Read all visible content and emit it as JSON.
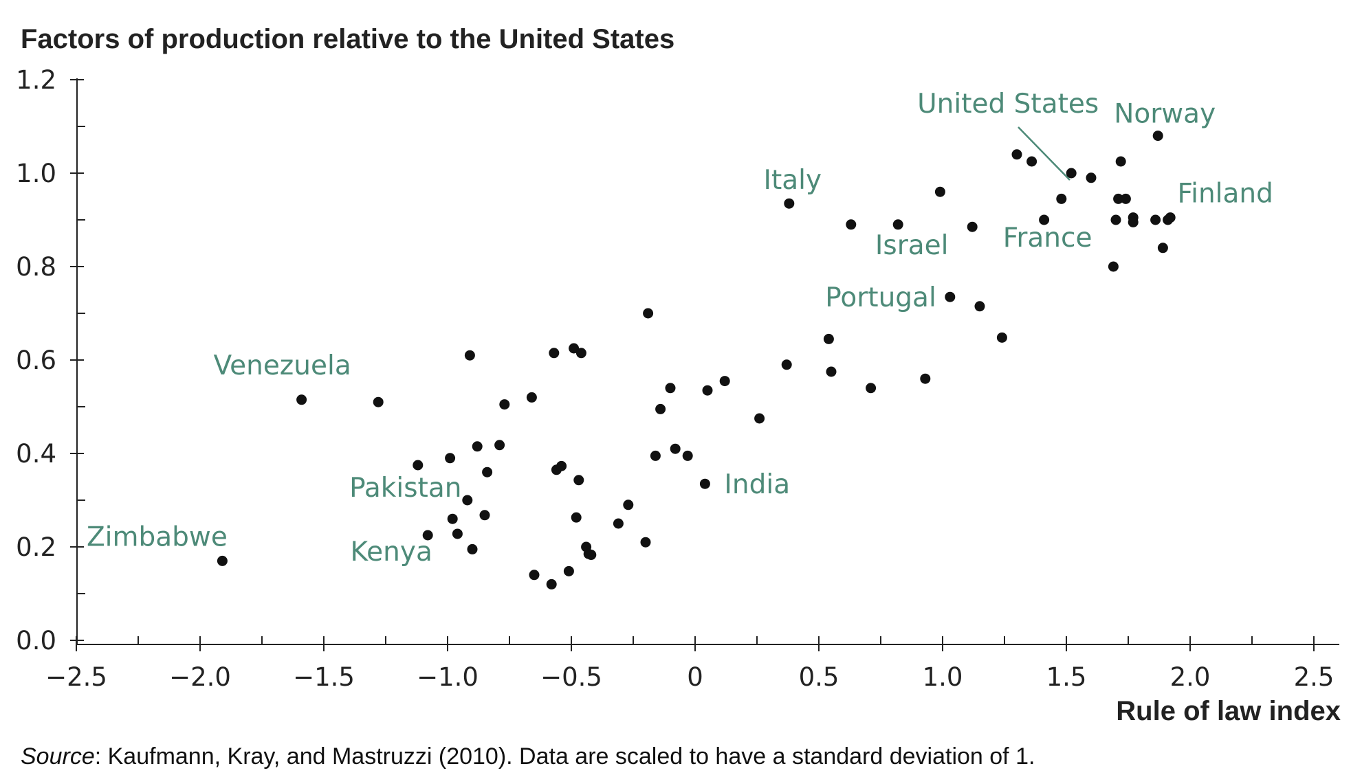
{
  "chart_data": {
    "type": "scatter",
    "title": "Factors of production relative to the United States",
    "xlabel": "Rule of law index",
    "ylabel": "",
    "xlim": [
      -2.5,
      2.5
    ],
    "ylim": [
      0.0,
      1.2
    ],
    "x_ticks": [
      "−2.5",
      "−2.0",
      "−1.5",
      "−1.0",
      "−0.5",
      "0",
      "0.5",
      "1.0",
      "1.5",
      "2.0",
      "2.5"
    ],
    "y_ticks": [
      "0.0",
      "0.2",
      "0.4",
      "0.6",
      "0.8",
      "1.0",
      "1.2"
    ],
    "grid": false,
    "point_color": "#111111",
    "label_color": "#4d8a78",
    "points": [
      {
        "x": -1.91,
        "y": 0.17
      },
      {
        "x": -1.59,
        "y": 0.515
      },
      {
        "x": -1.28,
        "y": 0.51
      },
      {
        "x": -1.12,
        "y": 0.375
      },
      {
        "x": -1.08,
        "y": 0.225
      },
      {
        "x": -0.99,
        "y": 0.39
      },
      {
        "x": -0.98,
        "y": 0.26
      },
      {
        "x": -0.96,
        "y": 0.228
      },
      {
        "x": -0.92,
        "y": 0.3
      },
      {
        "x": -0.91,
        "y": 0.61
      },
      {
        "x": -0.9,
        "y": 0.195
      },
      {
        "x": -0.88,
        "y": 0.415
      },
      {
        "x": -0.85,
        "y": 0.268
      },
      {
        "x": -0.84,
        "y": 0.36
      },
      {
        "x": -0.79,
        "y": 0.418
      },
      {
        "x": -0.77,
        "y": 0.505
      },
      {
        "x": -0.66,
        "y": 0.52
      },
      {
        "x": -0.65,
        "y": 0.14
      },
      {
        "x": -0.58,
        "y": 0.12
      },
      {
        "x": -0.57,
        "y": 0.615
      },
      {
        "x": -0.56,
        "y": 0.365
      },
      {
        "x": -0.54,
        "y": 0.373
      },
      {
        "x": -0.51,
        "y": 0.148
      },
      {
        "x": -0.49,
        "y": 0.625
      },
      {
        "x": -0.48,
        "y": 0.263
      },
      {
        "x": -0.47,
        "y": 0.343
      },
      {
        "x": -0.46,
        "y": 0.615
      },
      {
        "x": -0.44,
        "y": 0.2
      },
      {
        "x": -0.43,
        "y": 0.185
      },
      {
        "x": -0.42,
        "y": 0.183
      },
      {
        "x": -0.31,
        "y": 0.25
      },
      {
        "x": -0.27,
        "y": 0.29
      },
      {
        "x": -0.2,
        "y": 0.21
      },
      {
        "x": -0.19,
        "y": 0.7
      },
      {
        "x": -0.16,
        "y": 0.395
      },
      {
        "x": -0.14,
        "y": 0.495
      },
      {
        "x": -0.1,
        "y": 0.54
      },
      {
        "x": -0.08,
        "y": 0.41
      },
      {
        "x": -0.03,
        "y": 0.395
      },
      {
        "x": 0.04,
        "y": 0.335
      },
      {
        "x": 0.05,
        "y": 0.535
      },
      {
        "x": 0.12,
        "y": 0.555
      },
      {
        "x": 0.26,
        "y": 0.475
      },
      {
        "x": 0.37,
        "y": 0.59
      },
      {
        "x": 0.38,
        "y": 0.935
      },
      {
        "x": 0.54,
        "y": 0.645
      },
      {
        "x": 0.55,
        "y": 0.575
      },
      {
        "x": 0.63,
        "y": 0.89
      },
      {
        "x": 0.71,
        "y": 0.54
      },
      {
        "x": 0.82,
        "y": 0.89
      },
      {
        "x": 0.93,
        "y": 0.56
      },
      {
        "x": 0.99,
        "y": 0.96
      },
      {
        "x": 1.03,
        "y": 0.735
      },
      {
        "x": 1.12,
        "y": 0.885
      },
      {
        "x": 1.15,
        "y": 0.715
      },
      {
        "x": 1.24,
        "y": 0.648
      },
      {
        "x": 1.3,
        "y": 1.04
      },
      {
        "x": 1.36,
        "y": 1.025
      },
      {
        "x": 1.41,
        "y": 0.9
      },
      {
        "x": 1.48,
        "y": 0.945
      },
      {
        "x": 1.52,
        "y": 1.0
      },
      {
        "x": 1.6,
        "y": 0.99
      },
      {
        "x": 1.69,
        "y": 0.8
      },
      {
        "x": 1.7,
        "y": 0.9
      },
      {
        "x": 1.71,
        "y": 0.945
      },
      {
        "x": 1.72,
        "y": 1.025
      },
      {
        "x": 1.74,
        "y": 0.945
      },
      {
        "x": 1.77,
        "y": 0.905
      },
      {
        "x": 1.77,
        "y": 0.895
      },
      {
        "x": 1.86,
        "y": 0.9
      },
      {
        "x": 1.87,
        "y": 1.08
      },
      {
        "x": 1.89,
        "y": 0.84
      },
      {
        "x": 1.91,
        "y": 0.9
      },
      {
        "x": 1.92,
        "y": 0.905
      }
    ],
    "annotations": [
      {
        "text": "Zimbabwe",
        "x": -1.91,
        "y": 0.17
      },
      {
        "text": "Venezuela",
        "x": -1.59,
        "y": 0.515
      },
      {
        "text": "Pakistan",
        "x": -0.92,
        "y": 0.3
      },
      {
        "text": "Kenya",
        "x": -1.08,
        "y": 0.225
      },
      {
        "text": "India",
        "x": 0.04,
        "y": 0.335
      },
      {
        "text": "Italy",
        "x": 0.38,
        "y": 0.935
      },
      {
        "text": "Israel",
        "x": 0.82,
        "y": 0.89
      },
      {
        "text": "Portugal",
        "x": 1.03,
        "y": 0.735
      },
      {
        "text": "United States",
        "x": 1.52,
        "y": 1.0
      },
      {
        "text": "France",
        "x": 1.41,
        "y": 0.9
      },
      {
        "text": "Norway",
        "x": 1.87,
        "y": 1.08
      },
      {
        "text": "Finland",
        "x": 1.92,
        "y": 0.905
      }
    ]
  },
  "source": {
    "label": "Source",
    "text": ": Kaufmann, Kray, and Mastruzzi (2010). Data are scaled to have a standard deviation of 1."
  }
}
